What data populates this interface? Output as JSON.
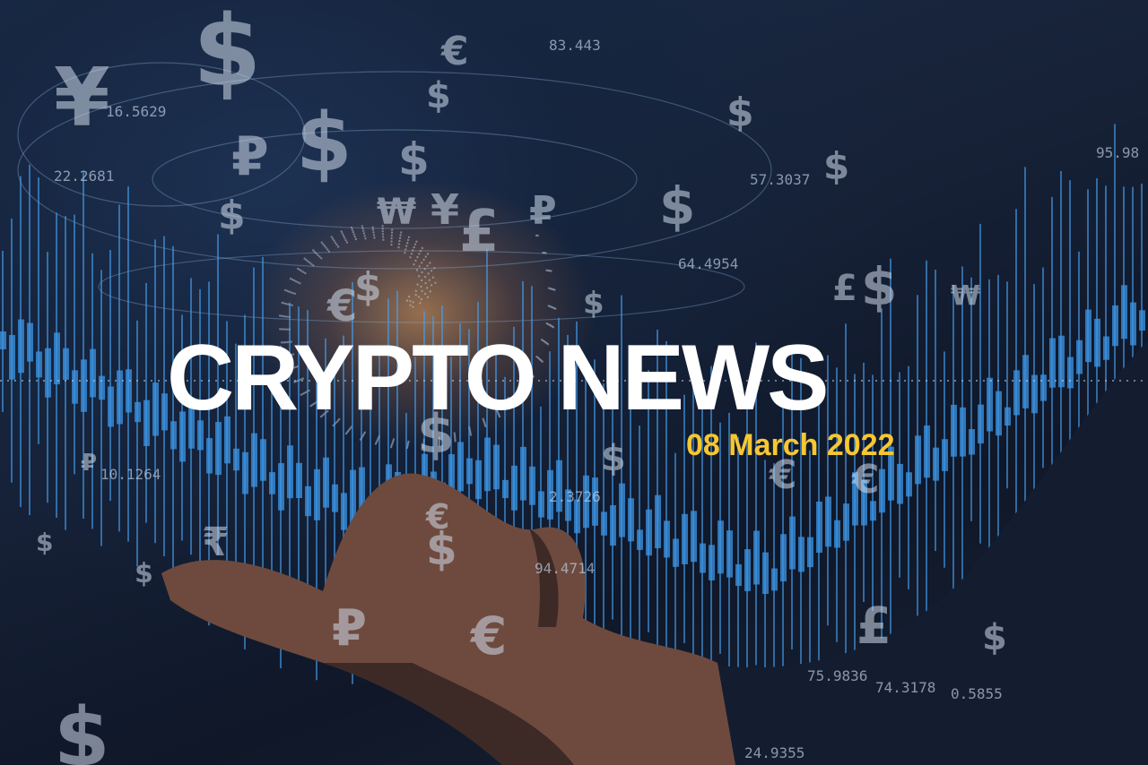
{
  "headline": "CRYPTO NEWS",
  "date": "08 March 2022",
  "colors": {
    "headline": "#ffffff",
    "date": "#f6c733",
    "background": "#172238",
    "candles": "#3c96e6",
    "glow": "#ffaa5a"
  },
  "decor": {
    "currency_symbols": [
      "¥",
      "$",
      "€",
      "₽",
      "£",
      "₩",
      "₹"
    ],
    "numbers": [
      "83.443",
      "16.5629",
      "22.2681",
      "57.3037",
      "95.98",
      "64.4954",
      "2.3726",
      "10.1264",
      "94.4714",
      "75.9836",
      "74.3178",
      "0.5855",
      "24.9355"
    ]
  }
}
